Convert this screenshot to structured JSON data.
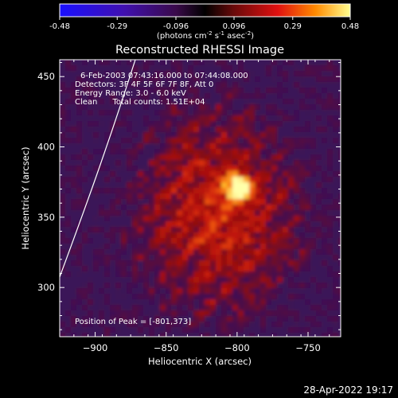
{
  "chart_data": {
    "type": "heatmap",
    "title": "Reconstructed RHESSI Image",
    "xlabel": "Heliocentric X (arcsec)",
    "ylabel": "Heliocentric Y (arcsec)",
    "xlim": [
      -925,
      -727
    ],
    "ylim": [
      265,
      462
    ],
    "xticks": [
      -900,
      -850,
      -800,
      -750
    ],
    "yticks": [
      300,
      350,
      400,
      450
    ],
    "colorbar": {
      "min": -0.48,
      "max": 0.48,
      "ticks": [
        "-0.48",
        "-0.29",
        "-0.096",
        "0.096",
        "0.29",
        "0.48"
      ],
      "unit_label_parts": [
        "(photons cm",
        "-2",
        " s",
        "-1",
        " asec",
        "-2",
        ")"
      ]
    },
    "annotations": [
      "6-Feb-2003 07:43:16.000 to 07:44:08.000",
      "Detectors: 3F 4F 5F 6F 7F 8F, Att 0",
      "Energy Range: 3.0 - 6.0 keV",
      "Clean      Total counts: 1.51E+04"
    ],
    "peak_label": "Position of Peak = [-801,373]",
    "peak": {
      "x": -801,
      "y": 373
    },
    "timestamp": "28-Apr-2022 19:17"
  }
}
